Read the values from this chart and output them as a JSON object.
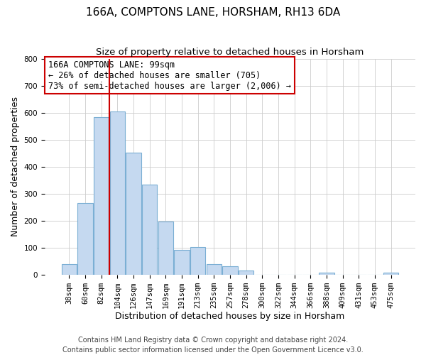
{
  "title": "166A, COMPTONS LANE, HORSHAM, RH13 6DA",
  "subtitle": "Size of property relative to detached houses in Horsham",
  "xlabel": "Distribution of detached houses by size in Horsham",
  "ylabel": "Number of detached properties",
  "bar_labels": [
    "38sqm",
    "60sqm",
    "82sqm",
    "104sqm",
    "126sqm",
    "147sqm",
    "169sqm",
    "191sqm",
    "213sqm",
    "235sqm",
    "257sqm",
    "278sqm",
    "300sqm",
    "322sqm",
    "344sqm",
    "366sqm",
    "388sqm",
    "409sqm",
    "431sqm",
    "453sqm",
    "475sqm"
  ],
  "bar_heights": [
    38,
    265,
    585,
    605,
    453,
    333,
    197,
    92,
    101,
    38,
    32,
    15,
    0,
    0,
    0,
    0,
    8,
    0,
    0,
    0,
    8
  ],
  "bar_color": "#c5d9f0",
  "bar_edge_color": "#7bafd4",
  "vline_x_index": 2,
  "vline_color": "#cc0000",
  "ylim": [
    0,
    800
  ],
  "yticks": [
    0,
    100,
    200,
    300,
    400,
    500,
    600,
    700,
    800
  ],
  "annotation_line1": "166A COMPTONS LANE: 99sqm",
  "annotation_line2": "← 26% of detached houses are smaller (705)",
  "annotation_line3": "73% of semi-detached houses are larger (2,006) →",
  "annotation_box_color": "#ffffff",
  "annotation_box_edge": "#cc0000",
  "footer_line1": "Contains HM Land Registry data © Crown copyright and database right 2024.",
  "footer_line2": "Contains public sector information licensed under the Open Government Licence v3.0.",
  "bg_color": "#ffffff",
  "grid_color": "#cccccc",
  "title_fontsize": 11,
  "subtitle_fontsize": 9.5,
  "axis_label_fontsize": 9,
  "tick_fontsize": 7.5,
  "annotation_fontsize": 8.5,
  "footer_fontsize": 7
}
